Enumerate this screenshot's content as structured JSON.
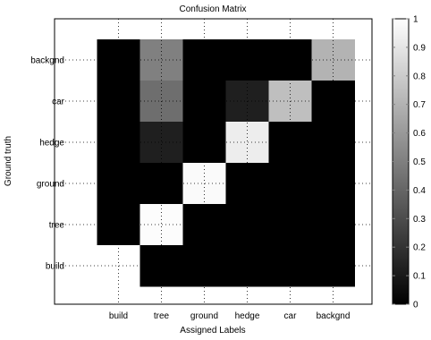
{
  "chart_data": {
    "type": "heatmap",
    "title": "Confusion Matrix",
    "xlabel": "Assigned Labels",
    "ylabel": "Ground truth",
    "x_categories": [
      "build",
      "tree",
      "ground",
      "hedge",
      "car",
      "backgnd"
    ],
    "y_categories": [
      "backgnd",
      "car",
      "hedge",
      "ground",
      "tree",
      "build"
    ],
    "values": [
      [
        0.0,
        0.5,
        0.0,
        0.0,
        0.0,
        0.7
      ],
      [
        0.0,
        0.43,
        0.0,
        0.12,
        0.75,
        0.0
      ],
      [
        0.0,
        0.12,
        0.0,
        0.93,
        0.0,
        0.0
      ],
      [
        0.0,
        0.0,
        0.98,
        0.0,
        0.0,
        0.0
      ],
      [
        0.0,
        0.99,
        0.0,
        0.0,
        0.0,
        0.0
      ],
      [
        1.0,
        0.0,
        0.0,
        0.0,
        0.0,
        0.0
      ]
    ],
    "colorscale": "gray",
    "clim": [
      0,
      1
    ],
    "colorbar_ticks": [
      "0",
      "0.1",
      "0.2",
      "0.3",
      "0.4",
      "0.5",
      "0.6",
      "0.7",
      "0.8",
      "0.9",
      "1"
    ],
    "grid": true
  }
}
